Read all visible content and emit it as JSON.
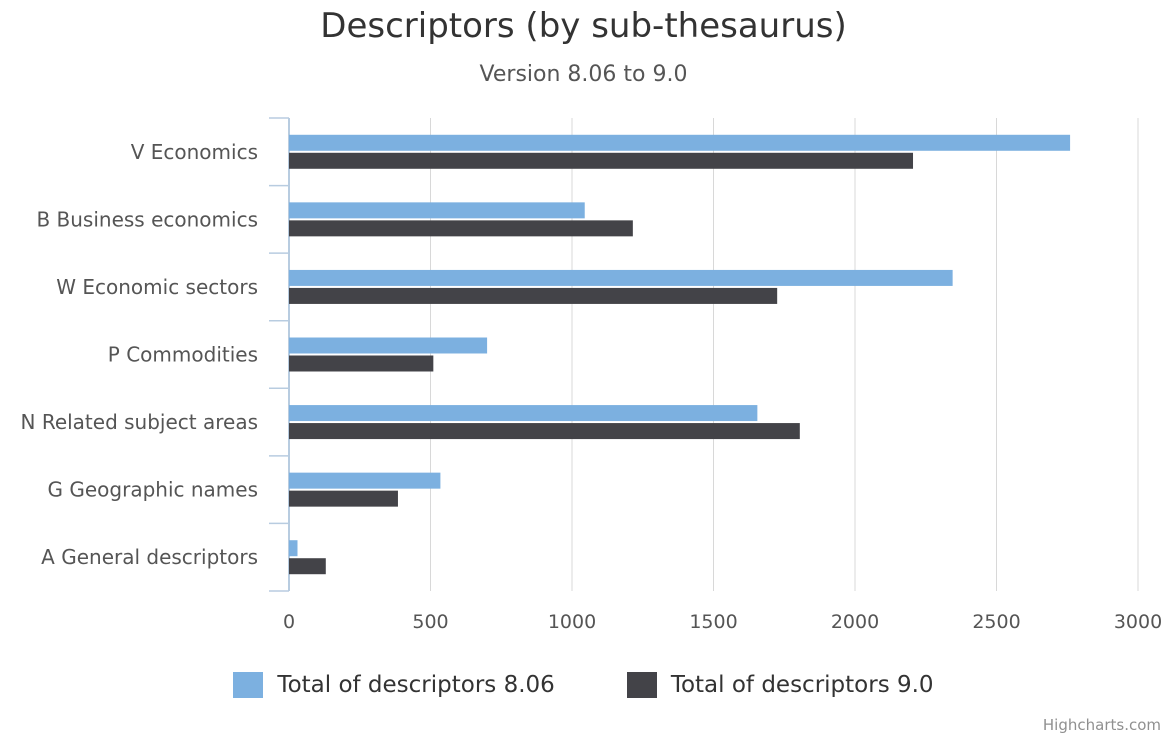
{
  "chart_data": {
    "type": "bar",
    "orientation": "horizontal",
    "title": "Descriptors (by sub-thesaurus)",
    "subtitle": "Version 8.06 to 9.0",
    "categories": [
      "V Economics",
      "B Business economics",
      "W Economic sectors",
      "P Commodities",
      "N Related subject areas",
      "G Geographic names",
      "A General descriptors"
    ],
    "series": [
      {
        "name": "Total of descriptors 8.06",
        "color": "#7cb0e0",
        "values": [
          2760,
          1045,
          2345,
          700,
          1655,
          535,
          30
        ]
      },
      {
        "name": "Total of descriptors 9.0",
        "color": "#434348",
        "values": [
          2205,
          1215,
          1725,
          510,
          1805,
          385,
          130
        ]
      }
    ],
    "xlim": [
      0,
      3000
    ],
    "ticks": [
      "0",
      "500",
      "1000",
      "1500",
      "2000",
      "2500",
      "3000"
    ],
    "grid": true,
    "legend_position": "bottom"
  },
  "credits": "Highcharts.com"
}
